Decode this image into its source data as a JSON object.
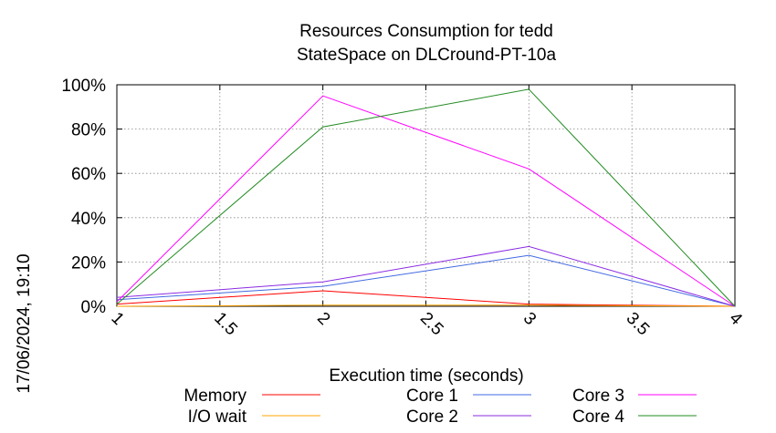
{
  "chart_data": {
    "type": "line",
    "title": "Resources Consumption for tedd",
    "subtitle": "StateSpace on DLCround-PT-10a",
    "xlabel": "Execution time (seconds)",
    "ylabel": "",
    "side_label": "17/06/2024, 19:10",
    "xlim": [
      1,
      4
    ],
    "ylim": [
      0,
      100
    ],
    "x_ticks": [
      "1",
      "1.5",
      "2",
      "2.5",
      "3",
      "3.5",
      "4"
    ],
    "y_ticks": [
      "0%",
      "20%",
      "40%",
      "60%",
      "80%",
      "100%"
    ],
    "grid": true,
    "legend_position": "bottom",
    "x": [
      1,
      2,
      3,
      4
    ],
    "series": [
      {
        "name": "Memory",
        "color": "#ff0000",
        "values": [
          1,
          7,
          1,
          0
        ]
      },
      {
        "name": "I/O wait",
        "color": "#ffa500",
        "values": [
          0,
          0.5,
          0.5,
          0
        ]
      },
      {
        "name": "Core 1",
        "color": "#4169e1",
        "values": [
          3,
          9,
          23,
          0
        ]
      },
      {
        "name": "Core 2",
        "color": "#8a2be2",
        "values": [
          4,
          11,
          27,
          0
        ]
      },
      {
        "name": "Core 3",
        "color": "#ff00ff",
        "values": [
          2,
          95,
          62,
          0
        ]
      },
      {
        "name": "Core 4",
        "color": "#228b22",
        "values": [
          1,
          81,
          98,
          0
        ]
      }
    ]
  }
}
